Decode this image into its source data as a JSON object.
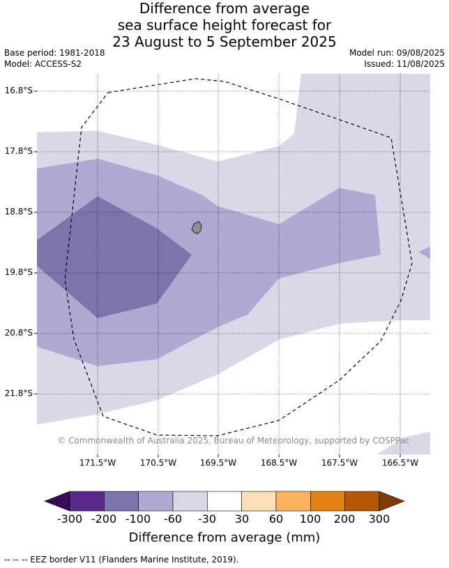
{
  "title": {
    "line1": "Difference from average",
    "line2": "sea surface height forecast for",
    "line3": "23 August to 5 September 2025"
  },
  "meta": {
    "base_period": "Base period: 1981-2018",
    "model": "Model: ACCESS-S2",
    "model_run": "Model run: 09/08/2025",
    "issued": "Issued: 11/08/2025"
  },
  "map": {
    "latitudes": [
      "16.8°S",
      "17.8°S",
      "18.8°S",
      "19.8°S",
      "20.8°S",
      "21.8°S"
    ],
    "longitudes": [
      "171.5°W",
      "170.5°W",
      "169.5°W",
      "168.5°W",
      "167.5°W",
      "166.5°W"
    ],
    "copyright": "© Commonwealth of Australia 2025, Bureau of Meteorology, supported by COSPPac",
    "colors": {
      "below_minus_300": "#3a0a5a",
      "minus_300_to_minus_200": "#5a2a8a",
      "minus_200_to_minus_100": "#7f73ae",
      "minus_100_to_minus_60": "#b0a9d1",
      "minus_60_to_minus_30": "#d8d8e8",
      "minus_30_to_30": "#ffffff",
      "30_to_60": "#fde0b8",
      "60_to_100": "#fbb45e",
      "100_to_200": "#e08214",
      "200_to_300": "#b35806",
      "above_300": "#7f3b08",
      "island": "#909090",
      "eez": "#000000"
    }
  },
  "colorbar": {
    "ticks": [
      "-300",
      "-200",
      "-100",
      "-60",
      "-30",
      "30",
      "60",
      "100",
      "200",
      "300"
    ],
    "label": "Difference from average (mm)"
  },
  "footer": "-- -- -- EEZ border V11 (Flanders Marine Institute, 2019)."
}
